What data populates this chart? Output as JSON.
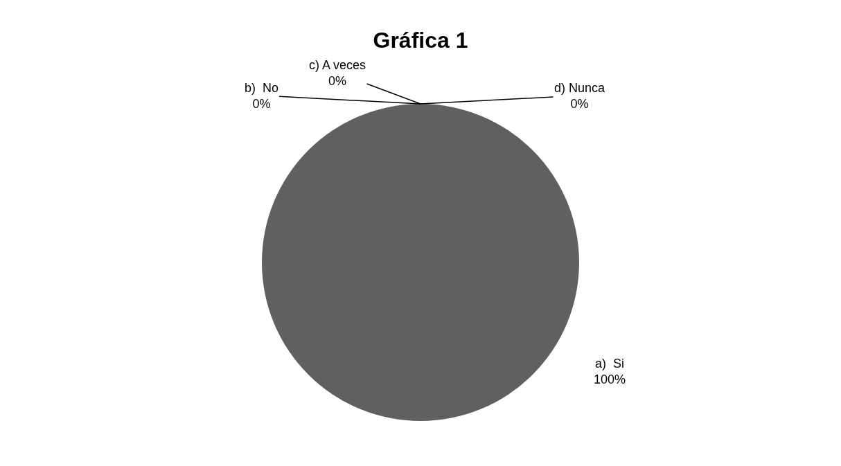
{
  "chart_data": {
    "type": "pie",
    "title": "Gráfica 1",
    "categories": [
      "a)  Si",
      "b)  No",
      "c) A veces",
      "d) Nunca"
    ],
    "values": [
      100,
      0,
      0,
      0
    ],
    "colors": [
      "#606060",
      "#808080",
      "#a0a0a0",
      "#c0c0c0"
    ],
    "value_labels": [
      "100%",
      "0%",
      "0%",
      "0%"
    ],
    "data_labels": true,
    "legend": false
  }
}
